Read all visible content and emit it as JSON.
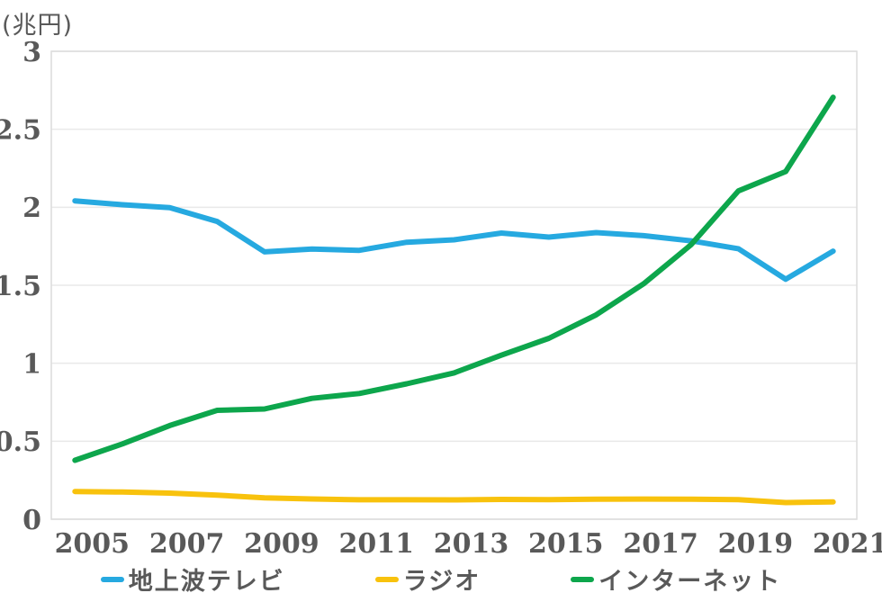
{
  "chart_data": {
    "type": "line",
    "unit_label": "(兆円)",
    "x": [
      2005,
      2006,
      2007,
      2008,
      2009,
      2010,
      2011,
      2012,
      2013,
      2014,
      2015,
      2016,
      2017,
      2018,
      2019,
      2020,
      2021
    ],
    "x_tick_labels": [
      "2005",
      "2007",
      "2009",
      "2011",
      "2013",
      "2015",
      "2017",
      "2019",
      "2021"
    ],
    "y_ticks": [
      0,
      0.5,
      1,
      1.5,
      2,
      2.5,
      3
    ],
    "y_tick_labels": [
      "0",
      "0.5",
      "1",
      "1.5",
      "2",
      "2.5",
      "3"
    ],
    "ylim": [
      0,
      3
    ],
    "grid": "horizontal-only",
    "legend_position": "bottom",
    "series": [
      {
        "name": "地上波テレビ",
        "color": "#26A9E0",
        "values": [
          2.0411,
          2.0161,
          1.9981,
          1.9092,
          1.7139,
          1.7321,
          1.7237,
          1.7757,
          1.7913,
          1.8347,
          1.8088,
          1.8374,
          1.8178,
          1.7848,
          1.7345,
          1.5386,
          1.7184
        ]
      },
      {
        "name": "ラジオ",
        "color": "#F8C20D",
        "values": [
          0.1778,
          0.1744,
          0.1671,
          0.1549,
          0.137,
          0.1299,
          0.1247,
          0.1246,
          0.1243,
          0.1272,
          0.1254,
          0.1285,
          0.129,
          0.1278,
          0.126,
          0.1066,
          0.1106
        ]
      },
      {
        "name": "インターネット",
        "color": "#0DA64C",
        "values": [
          0.3777,
          0.4826,
          0.6003,
          0.6983,
          0.7069,
          0.7747,
          0.8062,
          0.868,
          0.9381,
          1.0519,
          1.1594,
          1.31,
          1.5094,
          1.7589,
          2.1048,
          2.229,
          2.7052
        ]
      }
    ]
  },
  "colors": {
    "axis_text": "#595959",
    "gridline": "#E9E9E9",
    "plot_border": "#DCDCDC",
    "background": "#FFFFFF"
  }
}
